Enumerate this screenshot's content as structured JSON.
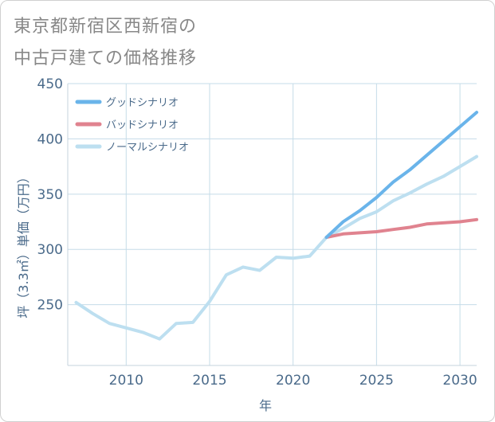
{
  "title_lines": [
    "東京都新宿区西新宿の",
    "中古戸建ての価格推移"
  ],
  "chart_data": {
    "type": "line",
    "xlabel": "年",
    "ylabel": "坪（3.3㎡）単価（万円）",
    "xlim": [
      2006.5,
      2031
    ],
    "ylim": [
      195,
      450
    ],
    "xticks": [
      2010,
      2015,
      2020,
      2025,
      2030
    ],
    "yticks": [
      250,
      300,
      350,
      400,
      450
    ],
    "grid": true,
    "legend_position": "top-left",
    "series": [
      {
        "name": "グッドシナリオ",
        "color": "#6ab4ea",
        "x": [
          2022,
          2023,
          2024,
          2025,
          2026,
          2027,
          2028,
          2029,
          2030,
          2031
        ],
        "y": [
          311,
          325,
          335,
          347,
          361,
          372,
          385,
          398,
          411,
          424
        ]
      },
      {
        "name": "バッドシナリオ",
        "color": "#e0838f",
        "x": [
          2022,
          2023,
          2024,
          2025,
          2026,
          2027,
          2028,
          2029,
          2030,
          2031
        ],
        "y": [
          311,
          314,
          315,
          316,
          318,
          320,
          323,
          324,
          325,
          327
        ]
      },
      {
        "name": "ノーマルシナリオ",
        "color": "#bddff0",
        "x": [
          2007,
          2008,
          2009,
          2010,
          2011,
          2012,
          2013,
          2014,
          2015,
          2016,
          2017,
          2018,
          2019,
          2020,
          2021,
          2022,
          2023,
          2024,
          2025,
          2026,
          2027,
          2028,
          2029,
          2030,
          2031
        ],
        "y": [
          252,
          242,
          233,
          229,
          225,
          219,
          233,
          234,
          253,
          277,
          284,
          281,
          293,
          292,
          294,
          311,
          319,
          328,
          334,
          344,
          351,
          359,
          366,
          375,
          384
        ]
      }
    ]
  }
}
